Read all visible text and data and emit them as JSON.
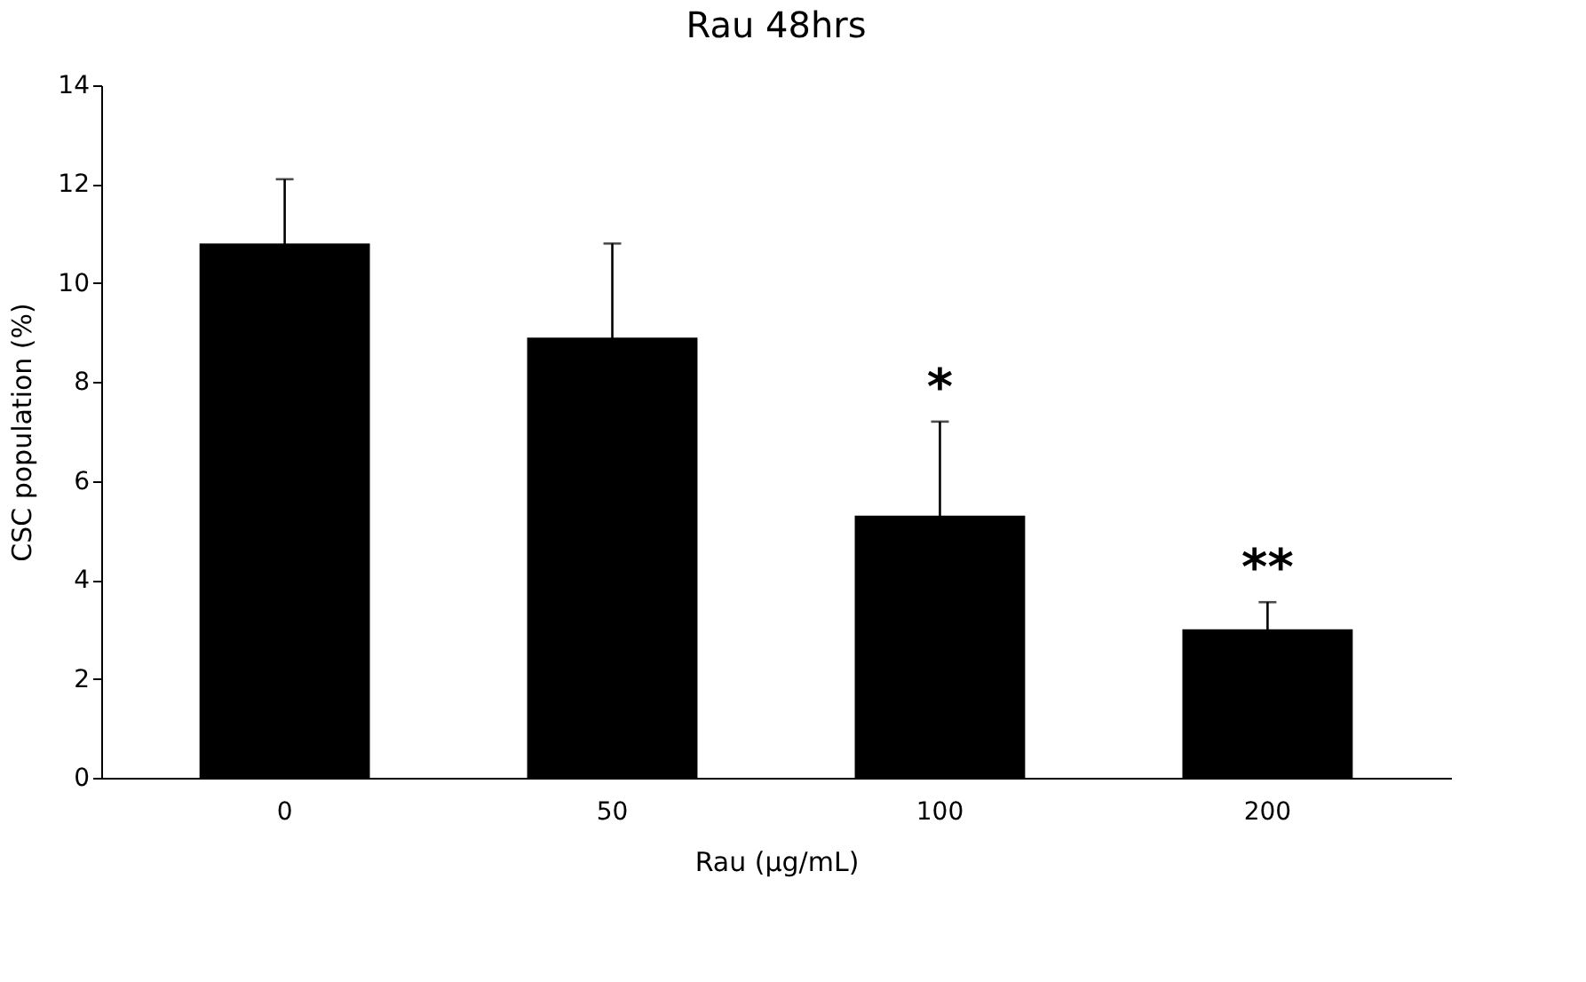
{
  "chart_data": {
    "type": "bar",
    "title": "Rau 48hrs",
    "xlabel": "Rau (µg/mL)",
    "ylabel": "CSC population (%)",
    "categories": [
      "0",
      "50",
      "100",
      "200"
    ],
    "values": [
      10.8,
      8.9,
      5.3,
      3.0
    ],
    "errors": [
      1.3,
      1.9,
      1.9,
      0.55
    ],
    "color": "#000000",
    "ylim": [
      0,
      14
    ],
    "yticks": [
      0,
      2,
      4,
      6,
      8,
      10,
      12,
      14
    ],
    "grid": false,
    "annotations": [
      "*",
      "**"
    ]
  }
}
